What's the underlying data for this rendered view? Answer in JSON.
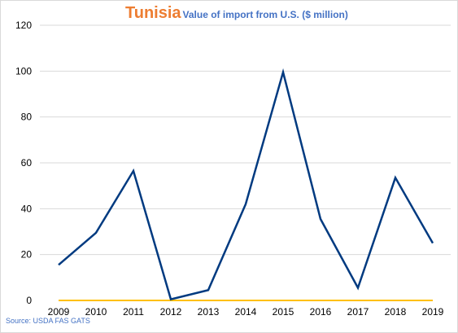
{
  "chart_data": {
    "type": "line",
    "title": "Tunisia",
    "subtitle": "Value of import from U.S. ($ million)",
    "source": "Source: USDA FAS GATS",
    "categories": [
      "2009",
      "2010",
      "2011",
      "2012",
      "2013",
      "2014",
      "2015",
      "2016",
      "2017",
      "2018",
      "2019"
    ],
    "series": [
      {
        "values": [
          15.5,
          29.5,
          56.5,
          0.5,
          4.5,
          42,
          99.5,
          35.5,
          5.5,
          53.5,
          25
        ],
        "color": "#003a80"
      },
      {
        "values": [
          0,
          0,
          0,
          0,
          0,
          0,
          0,
          0,
          0,
          0,
          0
        ],
        "color": "#ffc000"
      }
    ],
    "ylim": [
      0,
      120
    ],
    "yticks": [
      "0",
      "20",
      "40",
      "60",
      "80",
      "100",
      "120"
    ],
    "grid": true,
    "legend": "none",
    "colors": {
      "title": "#ed7d31",
      "subtitle": "#4472c4",
      "grid": "#d9d9d9"
    }
  }
}
